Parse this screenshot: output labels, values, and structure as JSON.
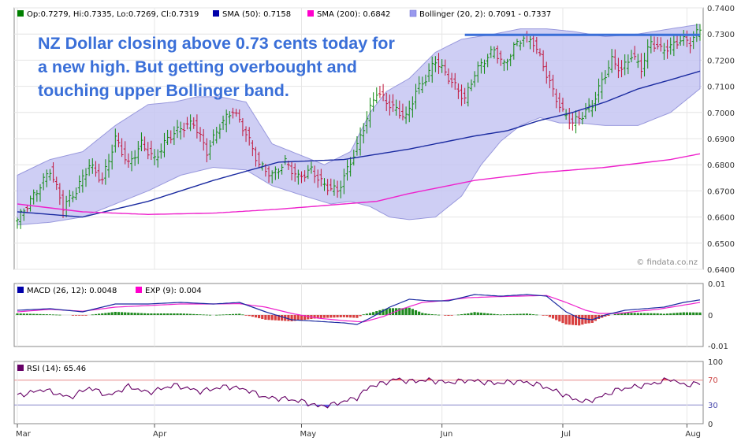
{
  "chart_data": [
    {
      "type": "ohlc",
      "legend": [
        {
          "label": "Op:0.7279, Hi:0.7335, Lo:0.7269, Cl:0.7319",
          "color": "#008000"
        },
        {
          "label": "SMA (50): 0.7158",
          "color": "#0000aa"
        },
        {
          "label": "SMA (200): 0.6842",
          "color": "#ff00cc"
        },
        {
          "label": "Bollinger (20, 2): 0.7091 - 0.7337",
          "color": "#9999ee"
        }
      ],
      "annotation_lines": [
        "NZ Dollar closing above 0.73 cents today for",
        "a new high. But getting overbought and",
        "touching upper Bollinger band."
      ],
      "watermark": "© findata.co.nz",
      "ylim": [
        0.64,
        0.74
      ],
      "yticks": [
        0.64,
        0.65,
        0.66,
        0.67,
        0.68,
        0.69,
        0.7,
        0.71,
        0.72,
        0.73,
        0.74
      ],
      "ytick_labels": [
        "0.6400",
        "0.6500",
        "0.6600",
        "0.6700",
        "0.6800",
        "0.6900",
        "0.7000",
        "0.7100",
        "0.7200",
        "0.7300",
        "0.7400"
      ],
      "resistance_level": 0.7297,
      "close_anchors": [
        [
          0,
          0.659
        ],
        [
          6,
          0.67
        ],
        [
          10,
          0.678
        ],
        [
          14,
          0.664
        ],
        [
          18,
          0.67
        ],
        [
          22,
          0.68
        ],
        [
          26,
          0.674
        ],
        [
          30,
          0.69
        ],
        [
          34,
          0.68
        ],
        [
          38,
          0.688
        ],
        [
          42,
          0.682
        ],
        [
          46,
          0.69
        ],
        [
          50,
          0.694
        ],
        [
          54,
          0.696
        ],
        [
          58,
          0.685
        ],
        [
          62,
          0.695
        ],
        [
          66,
          0.701
        ],
        [
          70,
          0.692
        ],
        [
          74,
          0.68
        ],
        [
          78,
          0.676
        ],
        [
          82,
          0.681
        ],
        [
          86,
          0.675
        ],
        [
          90,
          0.678
        ],
        [
          94,
          0.672
        ],
        [
          98,
          0.67
        ],
        [
          101,
          0.678
        ],
        [
          104,
          0.687
        ],
        [
          107,
          0.698
        ],
        [
          110,
          0.708
        ],
        [
          113,
          0.704
        ],
        [
          116,
          0.701
        ],
        [
          119,
          0.698
        ],
        [
          122,
          0.708
        ],
        [
          125,
          0.713
        ],
        [
          128,
          0.72
        ],
        [
          131,
          0.715
        ],
        [
          134,
          0.71
        ],
        [
          137,
          0.705
        ],
        [
          140,
          0.715
        ],
        [
          143,
          0.72
        ],
        [
          146,
          0.724
        ],
        [
          149,
          0.718
        ],
        [
          152,
          0.725
        ],
        [
          155,
          0.729
        ],
        [
          158,
          0.727
        ],
        [
          161,
          0.718
        ],
        [
          164,
          0.708
        ],
        [
          167,
          0.7
        ],
        [
          170,
          0.696
        ],
        [
          173,
          0.699
        ],
        [
          176,
          0.703
        ],
        [
          179,
          0.712
        ],
        [
          182,
          0.72
        ],
        [
          185,
          0.716
        ],
        [
          188,
          0.722
        ],
        [
          191,
          0.717
        ],
        [
          194,
          0.727
        ],
        [
          197,
          0.724
        ],
        [
          200,
          0.725
        ],
        [
          203,
          0.728
        ],
        [
          206,
          0.727
        ],
        [
          209,
          0.7319
        ]
      ],
      "sma50_anchors": [
        [
          0,
          0.662
        ],
        [
          20,
          0.66
        ],
        [
          40,
          0.666
        ],
        [
          60,
          0.674
        ],
        [
          80,
          0.681
        ],
        [
          100,
          0.682
        ],
        [
          120,
          0.686
        ],
        [
          140,
          0.691
        ],
        [
          150,
          0.693
        ],
        [
          160,
          0.697
        ],
        [
          170,
          0.7
        ],
        [
          180,
          0.704
        ],
        [
          190,
          0.709
        ],
        [
          200,
          0.7125
        ],
        [
          209,
          0.7158
        ]
      ],
      "sma200_anchors": [
        [
          0,
          0.665
        ],
        [
          20,
          0.662
        ],
        [
          40,
          0.661
        ],
        [
          60,
          0.6615
        ],
        [
          80,
          0.663
        ],
        [
          100,
          0.665
        ],
        [
          110,
          0.666
        ],
        [
          120,
          0.669
        ],
        [
          140,
          0.674
        ],
        [
          160,
          0.677
        ],
        [
          180,
          0.679
        ],
        [
          200,
          0.682
        ],
        [
          209,
          0.6842
        ]
      ],
      "upper_band_anchors": [
        [
          0,
          0.676
        ],
        [
          10,
          0.682
        ],
        [
          20,
          0.685
        ],
        [
          30,
          0.695
        ],
        [
          40,
          0.703
        ],
        [
          48,
          0.704
        ],
        [
          55,
          0.706
        ],
        [
          62,
          0.706
        ],
        [
          70,
          0.704
        ],
        [
          78,
          0.688
        ],
        [
          86,
          0.684
        ],
        [
          94,
          0.68
        ],
        [
          102,
          0.685
        ],
        [
          108,
          0.7
        ],
        [
          113,
          0.708
        ],
        [
          120,
          0.713
        ],
        [
          128,
          0.723
        ],
        [
          136,
          0.728
        ],
        [
          146,
          0.73
        ],
        [
          154,
          0.732
        ],
        [
          162,
          0.732
        ],
        [
          170,
          0.731
        ],
        [
          180,
          0.729
        ],
        [
          190,
          0.73
        ],
        [
          200,
          0.732
        ],
        [
          209,
          0.7337
        ]
      ],
      "lower_band_anchors": [
        [
          0,
          0.657
        ],
        [
          10,
          0.658
        ],
        [
          20,
          0.66
        ],
        [
          30,
          0.665
        ],
        [
          40,
          0.67
        ],
        [
          50,
          0.676
        ],
        [
          60,
          0.679
        ],
        [
          70,
          0.678
        ],
        [
          78,
          0.672
        ],
        [
          88,
          0.668
        ],
        [
          96,
          0.665
        ],
        [
          102,
          0.666
        ],
        [
          108,
          0.664
        ],
        [
          114,
          0.66
        ],
        [
          120,
          0.659
        ],
        [
          128,
          0.66
        ],
        [
          136,
          0.668
        ],
        [
          142,
          0.68
        ],
        [
          148,
          0.689
        ],
        [
          154,
          0.695
        ],
        [
          160,
          0.698
        ],
        [
          166,
          0.696
        ],
        [
          172,
          0.696
        ],
        [
          180,
          0.695
        ],
        [
          190,
          0.695
        ],
        [
          200,
          0.7
        ],
        [
          209,
          0.7091
        ]
      ]
    },
    {
      "type": "line",
      "legend": [
        {
          "label": "MACD (26, 12): 0.0048",
          "color": "#0000aa"
        },
        {
          "label": "EXP (9): 0.004",
          "color": "#ff00cc"
        }
      ],
      "ylim": [
        -0.01,
        0.01
      ],
      "ytick_labels": [
        "0.01",
        "0",
        "-0.01"
      ],
      "macd_anchors": [
        [
          0,
          0.0015
        ],
        [
          10,
          0.002
        ],
        [
          20,
          0.001
        ],
        [
          30,
          0.0035
        ],
        [
          40,
          0.0035
        ],
        [
          50,
          0.004
        ],
        [
          60,
          0.0035
        ],
        [
          68,
          0.004
        ],
        [
          76,
          0.001
        ],
        [
          84,
          -0.0015
        ],
        [
          92,
          -0.002
        ],
        [
          100,
          -0.0025
        ],
        [
          104,
          -0.003
        ],
        [
          108,
          -0.001
        ],
        [
          114,
          0.0025
        ],
        [
          120,
          0.005
        ],
        [
          126,
          0.0045
        ],
        [
          132,
          0.0045
        ],
        [
          140,
          0.0065
        ],
        [
          148,
          0.006
        ],
        [
          156,
          0.0065
        ],
        [
          162,
          0.006
        ],
        [
          168,
          0.001
        ],
        [
          172,
          -0.001
        ],
        [
          176,
          -0.0015
        ],
        [
          180,
          0.0
        ],
        [
          186,
          0.0015
        ],
        [
          192,
          0.002
        ],
        [
          198,
          0.0025
        ],
        [
          204,
          0.004
        ],
        [
          209,
          0.0048
        ]
      ],
      "exp_anchors": [
        [
          0,
          0.001
        ],
        [
          10,
          0.0018
        ],
        [
          20,
          0.0012
        ],
        [
          30,
          0.0025
        ],
        [
          40,
          0.003
        ],
        [
          50,
          0.0035
        ],
        [
          60,
          0.0035
        ],
        [
          68,
          0.0036
        ],
        [
          76,
          0.0025
        ],
        [
          84,
          0.0005
        ],
        [
          92,
          -0.001
        ],
        [
          100,
          -0.0018
        ],
        [
          106,
          -0.0022
        ],
        [
          112,
          -0.0005
        ],
        [
          118,
          0.002
        ],
        [
          124,
          0.004
        ],
        [
          130,
          0.0045
        ],
        [
          138,
          0.0055
        ],
        [
          146,
          0.0058
        ],
        [
          154,
          0.006
        ],
        [
          162,
          0.0062
        ],
        [
          168,
          0.004
        ],
        [
          174,
          0.0015
        ],
        [
          178,
          0.0005
        ],
        [
          184,
          0.0005
        ],
        [
          190,
          0.0012
        ],
        [
          196,
          0.0018
        ],
        [
          202,
          0.0028
        ],
        [
          209,
          0.004
        ]
      ]
    },
    {
      "type": "line",
      "legend": [
        {
          "label": "RSI (14): 65.46",
          "color": "#660066"
        }
      ],
      "ylim": [
        0,
        100
      ],
      "ytick_labels": [
        "100",
        "70",
        "30",
        "0"
      ],
      "overbought": 70,
      "oversold": 30,
      "rsi_anchors": [
        [
          0,
          45
        ],
        [
          8,
          55
        ],
        [
          16,
          42
        ],
        [
          22,
          58
        ],
        [
          28,
          45
        ],
        [
          34,
          60
        ],
        [
          40,
          50
        ],
        [
          48,
          62
        ],
        [
          56,
          52
        ],
        [
          64,
          60
        ],
        [
          70,
          55
        ],
        [
          76,
          42
        ],
        [
          82,
          40
        ],
        [
          88,
          35
        ],
        [
          92,
          28
        ],
        [
          96,
          30
        ],
        [
          100,
          36
        ],
        [
          104,
          42
        ],
        [
          108,
          60
        ],
        [
          112,
          65
        ],
        [
          116,
          72
        ],
        [
          120,
          68
        ],
        [
          126,
          70
        ],
        [
          132,
          66
        ],
        [
          138,
          70
        ],
        [
          146,
          65
        ],
        [
          154,
          68
        ],
        [
          160,
          62
        ],
        [
          166,
          50
        ],
        [
          170,
          40
        ],
        [
          174,
          35
        ],
        [
          178,
          42
        ],
        [
          184,
          55
        ],
        [
          190,
          60
        ],
        [
          196,
          66
        ],
        [
          200,
          72
        ],
        [
          204,
          62
        ],
        [
          209,
          65
        ]
      ]
    }
  ],
  "x_axis": {
    "month_labels": [
      "Mar",
      "Apr",
      "May",
      "Jun",
      "Jul",
      "Aug"
    ],
    "month_bar_index": [
      0,
      42,
      87,
      130,
      167,
      205
    ]
  }
}
